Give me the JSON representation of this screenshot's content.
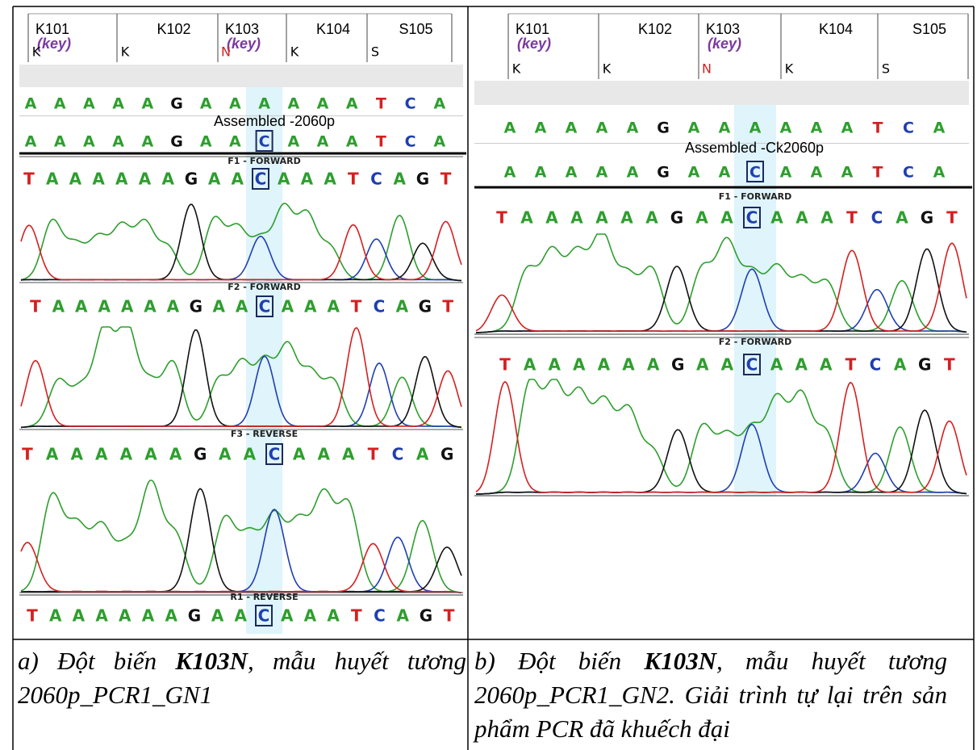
{
  "panels": [
    {
      "codons": [
        {
          "label": "K101",
          "key": "(key)",
          "aa": "K"
        },
        {
          "label": "K102",
          "aa": "K"
        },
        {
          "label": "K103",
          "key": "(key)",
          "aa": "N"
        },
        {
          "label": "K104",
          "aa": "K"
        },
        {
          "label": "S105",
          "aa": "S"
        }
      ],
      "reference": [
        "A",
        "A",
        "A",
        "A",
        "A",
        "G",
        "A",
        "A",
        "A",
        "A",
        "A",
        "A",
        "T",
        "C",
        "A"
      ],
      "assembled_label": "Assembled -2060p",
      "consensus": [
        "A",
        "A",
        "A",
        "A",
        "A",
        "G",
        "A",
        "A",
        "C",
        "A",
        "A",
        "A",
        "T",
        "C",
        "A"
      ],
      "reads": [
        {
          "name": "F1 - FORWARD",
          "bases": [
            "T",
            "A",
            "A",
            "A",
            "A",
            "A",
            "A",
            "G",
            "A",
            "A",
            "C",
            "A",
            "A",
            "A",
            "T",
            "C",
            "A",
            "G",
            "T"
          ]
        },
        {
          "name": "F2 - FORWARD",
          "bases": [
            "T",
            "A",
            "A",
            "A",
            "A",
            "A",
            "A",
            "G",
            "A",
            "A",
            "C",
            "A",
            "A",
            "A",
            "T",
            "C",
            "A",
            "G",
            "T"
          ]
        },
        {
          "name": "F3 - REVERSE",
          "bases": [
            "T",
            "A",
            "A",
            "A",
            "A",
            "A",
            "A",
            "G",
            "A",
            "A",
            "C",
            "A",
            "A",
            "A",
            "T",
            "C",
            "A",
            "G"
          ]
        },
        {
          "name": "R1 - REVERSE",
          "bases": [
            "T",
            "A",
            "A",
            "A",
            "A",
            "A",
            "A",
            "G",
            "A",
            "A",
            "C",
            "A",
            "A",
            "A",
            "T",
            "C",
            "A",
            "G",
            "T"
          ]
        }
      ],
      "caption": {
        "prefix": "a) Đột biến ",
        "bold": "K103N",
        "suffix": ", mẫu huyết tương 2060p_PCR1_GN1"
      }
    },
    {
      "codons": [
        {
          "label": "K101",
          "key": "(key)",
          "aa": "K"
        },
        {
          "label": "K102",
          "aa": "K"
        },
        {
          "label": "K103",
          "key": "(key)",
          "aa": "N"
        },
        {
          "label": "K104",
          "aa": "K"
        },
        {
          "label": "S105",
          "aa": "S"
        }
      ],
      "reference": [
        "A",
        "A",
        "A",
        "A",
        "A",
        "G",
        "A",
        "A",
        "A",
        "A",
        "A",
        "A",
        "T",
        "C",
        "A"
      ],
      "assembled_label": "Assembled -Ck2060p",
      "consensus": [
        "A",
        "A",
        "A",
        "A",
        "A",
        "G",
        "A",
        "A",
        "C",
        "A",
        "A",
        "A",
        "T",
        "C",
        "A"
      ],
      "reads": [
        {
          "name": "F1 - FORWARD",
          "bases": [
            "T",
            "A",
            "A",
            "A",
            "A",
            "A",
            "A",
            "G",
            "A",
            "A",
            "C",
            "A",
            "A",
            "A",
            "T",
            "C",
            "A",
            "G",
            "T"
          ]
        },
        {
          "name": "F2 - FORWARD",
          "bases": [
            "T",
            "A",
            "A",
            "A",
            "A",
            "A",
            "A",
            "G",
            "A",
            "A",
            "C",
            "A",
            "A",
            "A",
            "T",
            "C",
            "A",
            "G",
            "T"
          ]
        }
      ],
      "caption": {
        "prefix": "b) Đột biến ",
        "bold": "K103N",
        "suffix": ", mẫu huyết tương 2060p_PCR1_GN2. Giải trình tự lại trên sản phẩm PCR đã khuếch đại"
      }
    }
  ]
}
